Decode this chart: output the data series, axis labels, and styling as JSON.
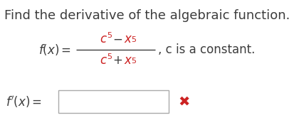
{
  "title": "Find the derivative of the algebraic function.",
  "title_color": "#3d3d3d",
  "title_fontsize": 13,
  "math_color_red": "#cc2222",
  "math_color_black": "#3d3d3d",
  "constant_text": ", c is a constant.",
  "background_color": "#ffffff",
  "x_mark_color": "#cc2222"
}
